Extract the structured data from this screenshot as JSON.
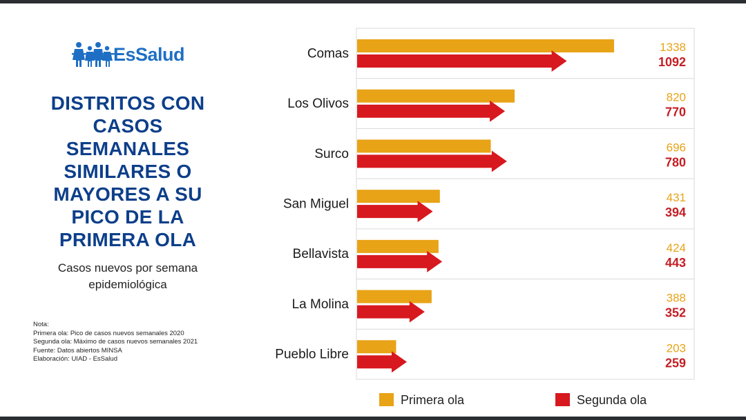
{
  "brand": {
    "name": "EsSalud"
  },
  "title": "DISTRITOS CON\nCASOS\nSEMANALES\nSIMILARES O\nMAYORES A SU\nPICO DE LA\nPRIMERA OLA",
  "subtitle": "Casos nuevos por semana\nepidemiológica",
  "notes": {
    "heading": "Nota:",
    "lines": [
      "Primera ola: Pico de casos nuevos semanales 2020",
      "Segunda ola: Máximo de casos nuevos semanales 2021",
      "Fuente: Datos abiertos MINSA",
      "Elaboración: UIAD - EsSalud"
    ]
  },
  "colors": {
    "primera": "#e8a317",
    "segunda": "#d7181f",
    "title": "#0d3f8a",
    "brand": "#1e6fc4"
  },
  "chart_data": {
    "type": "bar",
    "orientation": "horizontal",
    "categories": [
      "Comas",
      "Los Olivos",
      "Surco",
      "San Miguel",
      "Bellavista",
      "La Molina",
      "Pueblo Libre"
    ],
    "series": [
      {
        "name": "Primera ola",
        "values": [
          1338,
          820,
          696,
          431,
          424,
          388,
          203
        ],
        "shape": "bar"
      },
      {
        "name": "Segunda ola",
        "values": [
          1092,
          770,
          780,
          394,
          443,
          352,
          259
        ],
        "shape": "arrow"
      }
    ],
    "xlim": [
      0,
      1338
    ],
    "legend": "bottom",
    "grid": false
  }
}
